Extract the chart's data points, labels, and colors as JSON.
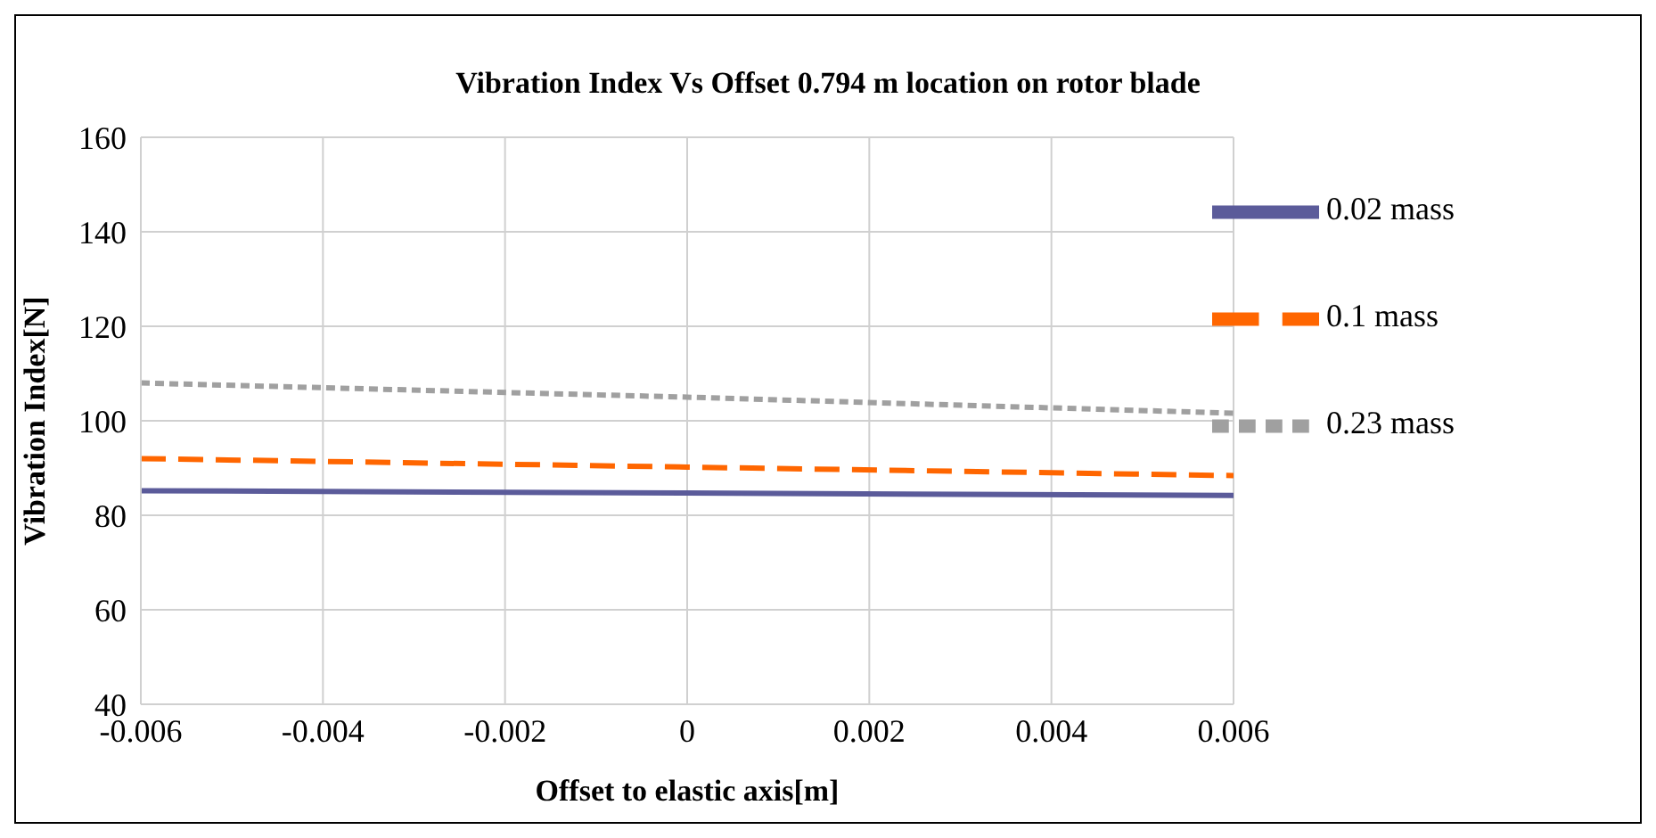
{
  "chart_data": {
    "type": "line",
    "title": "Vibration Index Vs Offset 0.794 m location on rotor blade",
    "xlabel": "Offset to elastic axis[m]",
    "ylabel": "Vibration Index[N]",
    "x": [
      -0.006,
      0,
      0.006
    ],
    "series": [
      {
        "name": "0.02 mass",
        "color": "#5b5b9a",
        "values": [
          85.2,
          84.7,
          84.2
        ],
        "line_style": "solid"
      },
      {
        "name": "0.1 mass",
        "color": "#ff6600",
        "values": [
          92,
          90.2,
          88.4
        ],
        "line_style": "dashed"
      },
      {
        "name": "0.23 mass",
        "color": "#a0a0a0",
        "values": [
          108,
          105,
          101.6
        ],
        "line_style": "dotted"
      }
    ],
    "xlim": [
      -0.006,
      0.006
    ],
    "xticks": [
      -0.006,
      -0.004,
      -0.002,
      0,
      0.002,
      0.004,
      0.006
    ],
    "ylim": [
      40,
      160
    ],
    "yticks": [
      40,
      60,
      80,
      100,
      120,
      140,
      160
    ],
    "grid": true,
    "legend": "top right",
    "marker": "none"
  }
}
